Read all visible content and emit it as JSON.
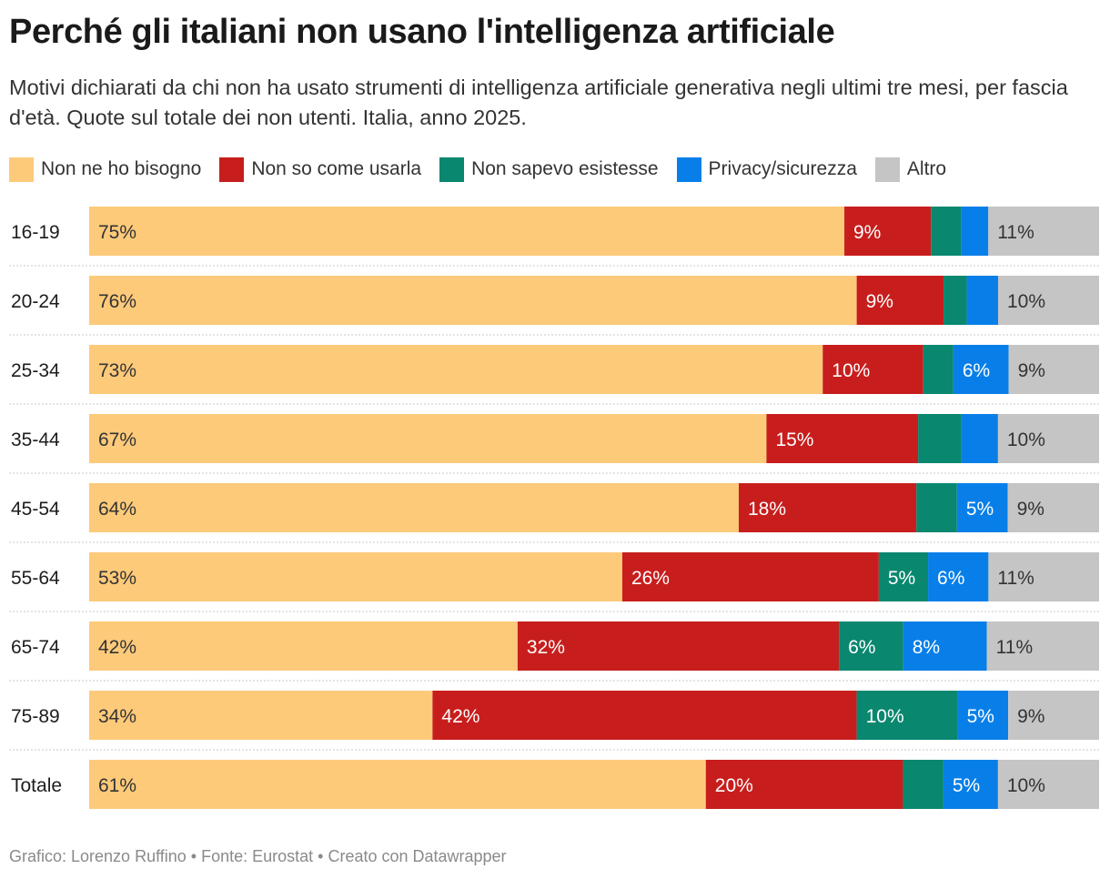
{
  "title": "Perché gli italiani non usano l'intelligenza artificiale",
  "subtitle": "Motivi dichiarati da chi non ha usato strumenti di intelligenza artificiale generativa negli ultimi tre mesi, per fascia d'età. Quote sul totale dei non utenti. Italia, anno 2025.",
  "footer": "Grafico: Lorenzo Ruffino • Fonte: Eurostat • Creato con Datawrapper",
  "legend": [
    {
      "label": "Non ne ho bisogno",
      "color": "#fdca7a",
      "icon": "swatch-non-ne-ho-bisogno"
    },
    {
      "label": "Non so come usarla",
      "color": "#c71e1d",
      "icon": "swatch-non-so-come-usarla"
    },
    {
      "label": "Non sapevo esistesse",
      "color": "#09876f",
      "icon": "swatch-non-sapevo-esistesse"
    },
    {
      "label": "Privacy/sicurezza",
      "color": "#087fe8",
      "icon": "swatch-privacy-sicurezza"
    },
    {
      "label": "Altro",
      "color": "#c5c5c5",
      "icon": "swatch-altro"
    }
  ],
  "chart_data": {
    "type": "bar",
    "orientation": "horizontal",
    "stacked": true,
    "unit": "%",
    "categories": [
      "16-19",
      "20-24",
      "25-34",
      "35-44",
      "45-54",
      "55-64",
      "65-74",
      "75-89",
      "Totale"
    ],
    "series": [
      {
        "name": "Non ne ho bisogno",
        "color": "#fdca7a",
        "label_color": "#333333",
        "values": [
          75,
          76,
          73,
          67,
          64,
          53,
          42,
          34,
          61
        ],
        "labels": [
          "75%",
          "76%",
          "73%",
          "67%",
          "64%",
          "53%",
          "42%",
          "34%",
          "61%"
        ]
      },
      {
        "name": "Non so come usarla",
        "color": "#c71e1d",
        "label_color": "#ffffff",
        "values": [
          8.6,
          8.6,
          10,
          15,
          17.5,
          25.5,
          31.5,
          42,
          19.5
        ],
        "labels": [
          "9%",
          "9%",
          "10%",
          "15%",
          "18%",
          "26%",
          "32%",
          "42%",
          "20%"
        ]
      },
      {
        "name": "Non sapevo esistesse",
        "color": "#09876f",
        "label_color": "#ffffff",
        "values": [
          3,
          2.3,
          3,
          4.3,
          4,
          4.9,
          6.3,
          10,
          4
        ],
        "labels": [
          "",
          "",
          "",
          "",
          "",
          "5%",
          "6%",
          "10%",
          ""
        ]
      },
      {
        "name": "Privacy/sicurezza",
        "color": "#087fe8",
        "label_color": "#ffffff",
        "values": [
          2.7,
          3.1,
          5.5,
          3.6,
          5,
          6,
          8.2,
          5,
          5.4
        ],
        "labels": [
          "",
          "",
          "6%",
          "",
          "5%",
          "6%",
          "8%",
          "5%",
          "5%"
        ]
      },
      {
        "name": "Altro",
        "color": "#c5c5c5",
        "label_color": "#333333",
        "values": [
          11,
          10,
          9,
          10,
          9,
          11,
          11,
          9,
          10
        ],
        "labels": [
          "11%",
          "10%",
          "9%",
          "10%",
          "9%",
          "11%",
          "11%",
          "9%",
          "10%"
        ]
      }
    ],
    "xlim": [
      0,
      100
    ],
    "grid": false,
    "legend_position": "top-left"
  }
}
